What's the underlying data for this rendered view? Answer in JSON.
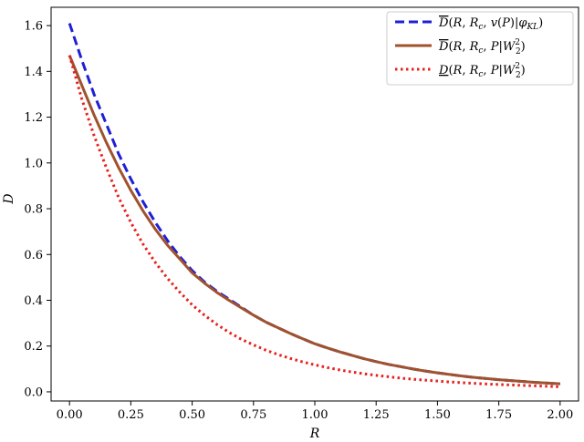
{
  "chart_data": {
    "type": "line",
    "title": "",
    "xlabel": "R",
    "ylabel": "D",
    "xlim": [
      -0.075,
      2.075
    ],
    "ylim": [
      -0.04,
      1.68
    ],
    "xticks": [
      "0.00",
      "0.25",
      "0.50",
      "0.75",
      "1.00",
      "1.25",
      "1.50",
      "1.75",
      "2.00"
    ],
    "yticks": [
      "0.0",
      "0.2",
      "0.4",
      "0.6",
      "0.8",
      "1.0",
      "1.2",
      "1.4",
      "1.6"
    ],
    "grid": false,
    "legend_position": "top-right",
    "x": [
      0.0,
      0.05,
      0.1,
      0.15,
      0.2,
      0.25,
      0.3,
      0.35,
      0.4,
      0.45,
      0.5,
      0.55,
      0.6,
      0.65,
      0.7,
      0.75,
      0.8,
      0.85,
      0.9,
      0.95,
      1.0,
      1.05,
      1.1,
      1.15,
      1.2,
      1.25,
      1.3,
      1.35,
      1.4,
      1.45,
      1.5,
      1.55,
      1.6,
      1.65,
      1.7,
      1.75,
      1.8,
      1.85,
      1.9,
      1.95,
      2.0
    ],
    "series": [
      {
        "name": "D̄(R, R_c, v(P)|φ_KL)",
        "color": "#1f1fd6",
        "style": "dashed",
        "values": [
          1.61,
          1.45,
          1.3,
          1.17,
          1.04,
          0.93,
          0.83,
          0.74,
          0.66,
          0.59,
          0.53,
          0.48,
          0.44,
          0.405,
          0.37,
          0.335,
          0.305,
          0.28,
          0.255,
          0.232,
          0.21,
          0.192,
          0.175,
          0.16,
          0.145,
          0.132,
          0.12,
          0.11,
          0.1,
          0.091,
          0.083,
          0.076,
          0.069,
          0.063,
          0.058,
          0.053,
          0.049,
          0.045,
          0.041,
          0.038,
          0.035
        ]
      },
      {
        "name": "D̄(R, R_c, P|W₂²)",
        "color": "#a0522d",
        "style": "solid",
        "values": [
          1.47,
          1.34,
          1.21,
          1.09,
          0.98,
          0.88,
          0.79,
          0.71,
          0.64,
          0.58,
          0.52,
          0.475,
          0.435,
          0.4,
          0.367,
          0.335,
          0.305,
          0.28,
          0.255,
          0.232,
          0.21,
          0.192,
          0.175,
          0.16,
          0.145,
          0.132,
          0.12,
          0.11,
          0.1,
          0.091,
          0.083,
          0.076,
          0.069,
          0.063,
          0.058,
          0.053,
          0.049,
          0.045,
          0.041,
          0.038,
          0.035
        ]
      },
      {
        "name": "D(R, R_c, P|W₂²)",
        "color": "#e8201c",
        "style": "dotted",
        "values": [
          1.47,
          1.28,
          1.12,
          0.98,
          0.85,
          0.74,
          0.645,
          0.565,
          0.495,
          0.435,
          0.38,
          0.335,
          0.295,
          0.26,
          0.23,
          0.205,
          0.182,
          0.163,
          0.146,
          0.131,
          0.118,
          0.106,
          0.096,
          0.087,
          0.079,
          0.072,
          0.066,
          0.06,
          0.055,
          0.051,
          0.047,
          0.043,
          0.04,
          0.037,
          0.034,
          0.032,
          0.03,
          0.028,
          0.026,
          0.024,
          0.022
        ]
      }
    ]
  }
}
